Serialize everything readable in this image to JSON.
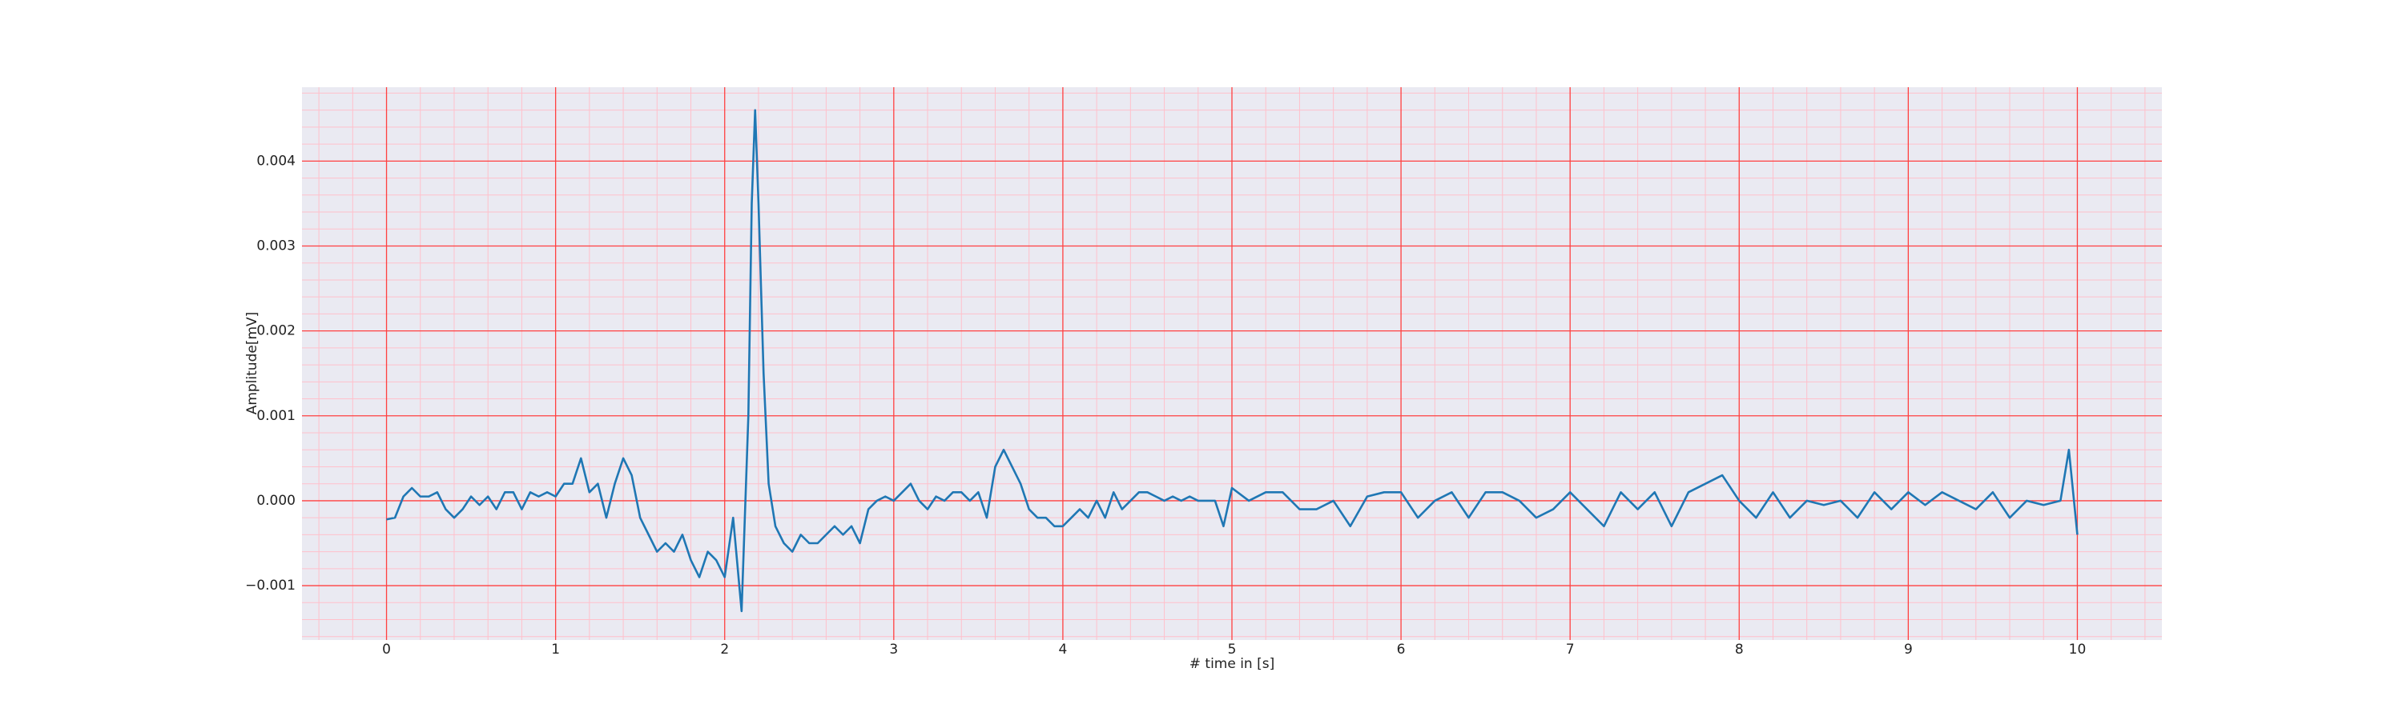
{
  "chart_data": {
    "type": "line",
    "xlabel": "# time in [s]",
    "ylabel": "Amplitude[mV]",
    "color": "#1f77b4",
    "grid": true,
    "grid_color": "#ff4040",
    "minor_grid_color": "#ffc0cb",
    "background": "#eaeaf2",
    "xlim": [
      -0.5,
      10.5
    ],
    "xticks": [
      0,
      1,
      2,
      3,
      4,
      5,
      6,
      7,
      8,
      9,
      10
    ],
    "xminorticks": [
      -0.4,
      -0.2,
      0.2,
      0.4,
      0.6,
      0.8,
      1.2,
      1.4,
      1.6,
      1.8,
      2.2,
      2.4,
      2.6,
      2.8,
      3.2,
      3.4,
      3.6,
      3.8,
      4.2,
      4.4,
      4.6,
      4.8,
      5.2,
      5.4,
      5.6,
      5.8,
      6.2,
      6.4,
      6.6,
      6.8,
      7.2,
      7.4,
      7.6,
      7.8,
      8.2,
      8.4,
      8.6,
      8.8,
      9.2,
      9.4,
      9.6,
      9.8,
      10.2,
      10.4
    ],
    "ylim": [
      -0.00164,
      0.00487
    ],
    "yticks": [
      {
        "value": -0.001,
        "label": "−0.001"
      },
      {
        "value": 0,
        "label": "0.000"
      },
      0.001,
      0.002,
      0.003,
      0.004
    ],
    "yminorticks": [
      -0.0016,
      -0.0014,
      -0.0012,
      -0.0008,
      -0.0006,
      -0.0004,
      -0.0002,
      0.0002,
      0.0004,
      0.0006,
      0.0008,
      0.0012,
      0.0014,
      0.0016,
      0.0018,
      0.0022,
      0.0024,
      0.0026,
      0.0028,
      0.0032,
      0.0034,
      0.0036,
      0.0038,
      0.0042,
      0.0044,
      0.0046,
      0.0048
    ],
    "x": [
      0,
      0.05,
      0.1,
      0.15,
      0.2,
      0.25,
      0.3,
      0.35,
      0.4,
      0.45,
      0.5,
      0.55,
      0.6,
      0.65,
      0.7,
      0.75,
      0.8,
      0.85,
      0.9,
      0.95,
      1.0,
      1.05,
      1.1,
      1.15,
      1.2,
      1.25,
      1.3,
      1.35,
      1.4,
      1.45,
      1.5,
      1.55,
      1.6,
      1.65,
      1.7,
      1.75,
      1.8,
      1.85,
      1.9,
      1.95,
      2.0,
      2.05,
      2.1,
      2.14,
      2.16,
      2.18,
      2.2,
      2.23,
      2.26,
      2.3,
      2.35,
      2.4,
      2.45,
      2.5,
      2.55,
      2.6,
      2.65,
      2.7,
      2.75,
      2.8,
      2.85,
      2.9,
      2.95,
      3.0,
      3.05,
      3.1,
      3.15,
      3.2,
      3.25,
      3.3,
      3.35,
      3.4,
      3.45,
      3.5,
      3.55,
      3.6,
      3.65,
      3.7,
      3.75,
      3.8,
      3.85,
      3.9,
      3.95,
      4.0,
      4.05,
      4.1,
      4.15,
      4.2,
      4.25,
      4.3,
      4.35,
      4.4,
      4.45,
      4.5,
      4.55,
      4.6,
      4.65,
      4.7,
      4.75,
      4.8,
      4.85,
      4.9,
      4.95,
      5.0,
      5.1,
      5.2,
      5.3,
      5.4,
      5.5,
      5.6,
      5.7,
      5.8,
      5.9,
      6.0,
      6.1,
      6.2,
      6.3,
      6.4,
      6.5,
      6.6,
      6.7,
      6.8,
      6.9,
      7.0,
      7.1,
      7.2,
      7.3,
      7.4,
      7.5,
      7.6,
      7.7,
      7.8,
      7.9,
      8.0,
      8.1,
      8.2,
      8.3,
      8.4,
      8.5,
      8.6,
      8.7,
      8.8,
      8.9,
      9.0,
      9.1,
      9.2,
      9.3,
      9.4,
      9.5,
      9.6,
      9.7,
      9.8,
      9.9,
      9.95,
      10.0
    ],
    "values": [
      -0.00022,
      -0.0002,
      5e-05,
      0.00015,
      5e-05,
      5e-05,
      0.0001,
      -0.0001,
      -0.0002,
      -0.0001,
      5e-05,
      -5e-05,
      5e-05,
      -0.0001,
      0.0001,
      0.0001,
      -0.0001,
      0.0001,
      5e-05,
      0.0001,
      5e-05,
      0.0002,
      0.0002,
      0.0005,
      0.0001,
      0.0002,
      -0.0002,
      0.0002,
      0.0005,
      0.0003,
      -0.0002,
      -0.0004,
      -0.0006,
      -0.0005,
      -0.0006,
      -0.0004,
      -0.0007,
      -0.0009,
      -0.0006,
      -0.0007,
      -0.0009,
      -0.0002,
      -0.0013,
      0.001,
      0.0035,
      0.0046,
      0.0035,
      0.0015,
      0.0002,
      -0.0003,
      -0.0005,
      -0.0006,
      -0.0004,
      -0.0005,
      -0.0005,
      -0.0004,
      -0.0003,
      -0.0004,
      -0.0003,
      -0.0005,
      -0.0001,
      0,
      5e-05,
      0,
      0.0001,
      0.0002,
      0,
      -0.0001,
      5e-05,
      0,
      0.0001,
      0.0001,
      0,
      0.0001,
      -0.0002,
      0.0004,
      0.0006,
      0.0004,
      0.0002,
      -0.0001,
      -0.0002,
      -0.0002,
      -0.0003,
      -0.0003,
      -0.0002,
      -0.0001,
      -0.0002,
      0,
      -0.0002,
      0.0001,
      -0.0001,
      0,
      0.0001,
      0.0001,
      5e-05,
      0,
      5e-05,
      0,
      5e-05,
      0,
      0,
      0,
      -0.0003,
      0.00015,
      0,
      0.0001,
      0.0001,
      -0.0001,
      -0.0001,
      0,
      -0.0003,
      5e-05,
      0.0001,
      0.0001,
      -0.0002,
      0,
      0.0001,
      -0.0002,
      0.0001,
      0.0001,
      0,
      -0.0002,
      -0.0001,
      0.0001,
      -0.0001,
      -0.0003,
      0.0001,
      -0.0001,
      0.0001,
      -0.0003,
      0.0001,
      0.0002,
      0.0003,
      0,
      -0.0002,
      0.0001,
      -0.0002,
      0,
      -5e-05,
      0,
      -0.0002,
      0.0001,
      -0.0001,
      0.0001,
      -5e-05,
      0.0001,
      0,
      -0.0001,
      0.0001,
      -0.0002,
      0,
      -5e-05,
      0,
      0.0006,
      -0.0004
    ]
  }
}
